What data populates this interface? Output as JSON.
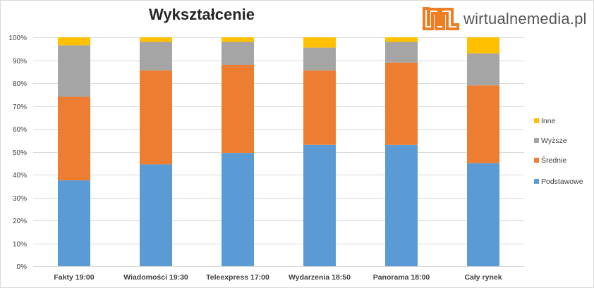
{
  "brand": {
    "name": "wirtualnemedia.pl"
  },
  "chart_data": {
    "type": "bar",
    "stacked": true,
    "title": "Wykształcenie",
    "xlabel": "",
    "ylabel": "",
    "ylim": [
      0,
      100
    ],
    "y_ticks": [
      0,
      10,
      20,
      30,
      40,
      50,
      60,
      70,
      80,
      90,
      100
    ],
    "y_tick_format": "%",
    "grid": true,
    "legend_position": "right",
    "categories": [
      "Fakty 19:00",
      "Wiadomości 19:30",
      "Teleexpress 17:00",
      "Wydarzenia 18:50",
      "Panorama 18:00",
      "Cały rynek"
    ],
    "series": [
      {
        "name": "Podstawowe",
        "color": "#5b9bd5",
        "values": [
          37.5,
          44.5,
          49.5,
          53.0,
          53.0,
          45.0
        ]
      },
      {
        "name": "Średnie",
        "color": "#ed7d31",
        "values": [
          36.5,
          41.0,
          38.5,
          32.5,
          36.0,
          34.0
        ]
      },
      {
        "name": "Wyższe",
        "color": "#a5a5a5",
        "values": [
          22.5,
          12.5,
          10.0,
          10.0,
          9.0,
          14.0
        ]
      },
      {
        "name": "Inne",
        "color": "#ffc000",
        "values": [
          3.5,
          2.0,
          2.0,
          4.5,
          2.0,
          7.0
        ]
      }
    ]
  }
}
